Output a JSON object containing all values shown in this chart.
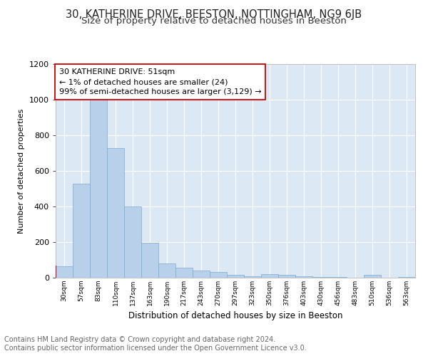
{
  "title_line1": "30, KATHERINE DRIVE, BEESTON, NOTTINGHAM, NG9 6JB",
  "title_line2": "Size of property relative to detached houses in Beeston",
  "xlabel": "Distribution of detached houses by size in Beeston",
  "ylabel": "Number of detached properties",
  "categories": [
    "30sqm",
    "57sqm",
    "83sqm",
    "110sqm",
    "137sqm",
    "163sqm",
    "190sqm",
    "217sqm",
    "243sqm",
    "270sqm",
    "297sqm",
    "323sqm",
    "350sqm",
    "376sqm",
    "403sqm",
    "430sqm",
    "456sqm",
    "483sqm",
    "510sqm",
    "536sqm",
    "563sqm"
  ],
  "values": [
    65,
    530,
    1000,
    730,
    400,
    195,
    80,
    55,
    40,
    32,
    18,
    10,
    20,
    15,
    8,
    5,
    3,
    2,
    15,
    2,
    5
  ],
  "bar_color": "#b8d0ea",
  "bar_edge_color": "#7aaad0",
  "highlight_bar_index": 0,
  "highlight_bar_edge_color": "#cc0000",
  "annotation_box_text": "30 KATHERINE DRIVE: 51sqm\n← 1% of detached houses are smaller (24)\n99% of semi-detached houses are larger (3,129) →",
  "annotation_box_facecolor": "#ffffff",
  "annotation_box_edgecolor": "#cc0000",
  "ylim": [
    0,
    1200
  ],
  "yticks": [
    0,
    200,
    400,
    600,
    800,
    1000,
    1200
  ],
  "plot_bg_color": "#dce9f5",
  "footer_line1": "Contains HM Land Registry data © Crown copyright and database right 2024.",
  "footer_line2": "Contains public sector information licensed under the Open Government Licence v3.0.",
  "title_fontsize": 10.5,
  "subtitle_fontsize": 9.5,
  "annotation_fontsize": 8,
  "footer_fontsize": 7
}
